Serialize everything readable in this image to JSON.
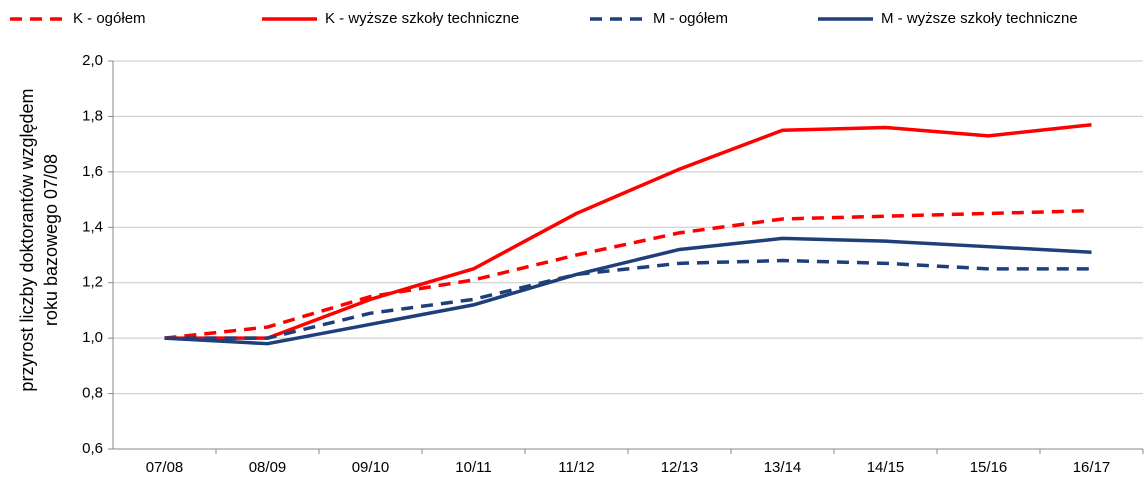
{
  "chart_data": {
    "type": "line",
    "ylabel": [
      "przyrost liczby doktorantów względem",
      "roku bazowego 07/08"
    ],
    "categories": [
      "07/08",
      "08/09",
      "09/10",
      "10/11",
      "11/12",
      "12/13",
      "13/14",
      "14/15",
      "15/16",
      "16/17"
    ],
    "series": [
      {
        "name": "K - ogółem",
        "color": "#ff0000",
        "dashed": true,
        "values": [
          1.0,
          1.04,
          1.15,
          1.21,
          1.3,
          1.38,
          1.43,
          1.44,
          1.45,
          1.46
        ]
      },
      {
        "name": "K - wyższe szkoły techniczne",
        "color": "#ff0000",
        "dashed": false,
        "values": [
          1.0,
          1.0,
          1.14,
          1.25,
          1.45,
          1.61,
          1.75,
          1.76,
          1.73,
          1.77
        ]
      },
      {
        "name": "M - ogółem",
        "color": "#1f3f7a",
        "dashed": true,
        "values": [
          1.0,
          1.0,
          1.09,
          1.14,
          1.23,
          1.27,
          1.28,
          1.27,
          1.25,
          1.25
        ]
      },
      {
        "name": "M - wyższe szkoły techniczne",
        "color": "#1f3f7a",
        "dashed": false,
        "values": [
          1.0,
          0.98,
          1.05,
          1.12,
          1.23,
          1.32,
          1.36,
          1.35,
          1.33,
          1.31
        ]
      }
    ],
    "ylim": [
      0.6,
      2.0
    ],
    "yticks": [
      {
        "value": 0.6,
        "label": "0,6"
      },
      {
        "value": 0.8,
        "label": "0,8"
      },
      {
        "value": 1.0,
        "label": "1,0"
      },
      {
        "value": 1.2,
        "label": "1,2"
      },
      {
        "value": 1.4,
        "label": "1,4"
      },
      {
        "value": 1.6,
        "label": "1,6"
      },
      {
        "value": 1.8,
        "label": "1,8"
      },
      {
        "value": 2.0,
        "label": "2,0"
      }
    ],
    "grid": true,
    "legend": "top"
  }
}
